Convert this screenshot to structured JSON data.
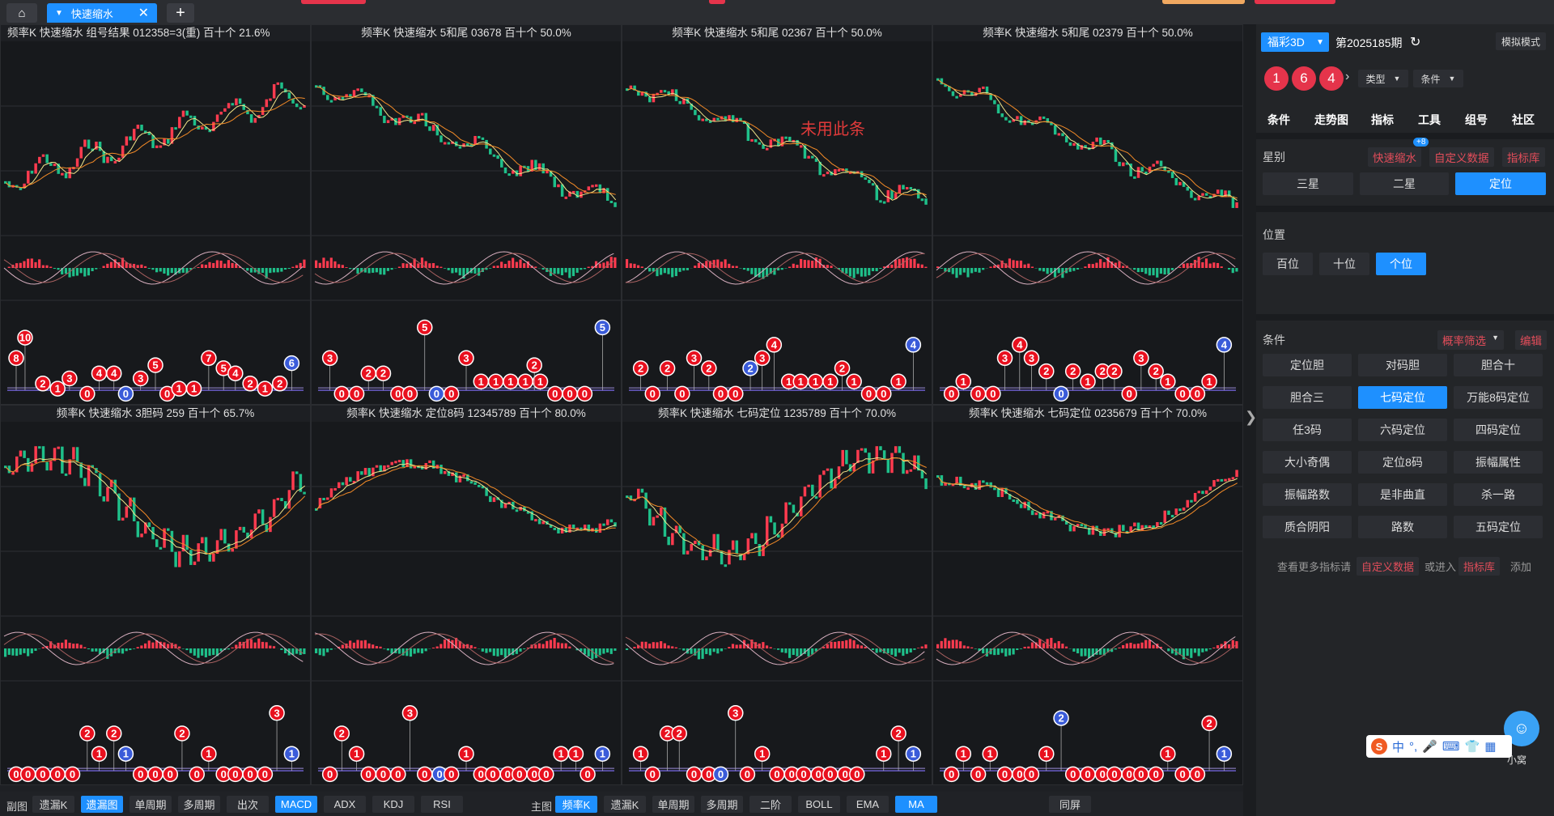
{
  "app": {
    "tabs": [
      {
        "label": "快速缩水"
      }
    ],
    "add_tab": "+",
    "colors": {
      "up": "#ff3b4f",
      "down": "#1fc08a",
      "accent": "#1e90ff",
      "ball_red": "#e8101e",
      "ball_blue": "#3a5bd9",
      "ma5": "#f2e58a",
      "ma10": "#f28a27"
    }
  },
  "panels": [
    {
      "title": "频率K  快速缩水  组号结果 012358=3(重)  百十个  21.6%",
      "align": "left",
      "trend": "up",
      "balls": [
        [
          "8",
          0.03,
          0.55
        ],
        [
          "10",
          0.06,
          0.35
        ],
        [
          "2",
          0.12,
          0.8
        ],
        [
          "1",
          0.17,
          0.85
        ],
        [
          "3",
          0.21,
          0.75
        ],
        [
          "0",
          0.27,
          0.9
        ],
        [
          "4",
          0.31,
          0.7
        ],
        [
          "4",
          0.36,
          0.7
        ],
        [
          "0",
          0.4,
          0.9,
          "b"
        ],
        [
          "3",
          0.45,
          0.75
        ],
        [
          "5",
          0.5,
          0.62
        ],
        [
          "0",
          0.54,
          0.9
        ],
        [
          "1",
          0.58,
          0.85
        ],
        [
          "1",
          0.63,
          0.85
        ],
        [
          "7",
          0.68,
          0.55
        ],
        [
          "5",
          0.73,
          0.65
        ],
        [
          "4",
          0.77,
          0.7
        ],
        [
          "2",
          0.82,
          0.8
        ],
        [
          "1",
          0.87,
          0.85
        ],
        [
          "2",
          0.92,
          0.8
        ],
        [
          "6",
          0.96,
          0.6,
          "b"
        ]
      ]
    },
    {
      "title": "频率K  快速缩水  5和尾 03678  百十个  50.0%",
      "align": "center",
      "trend": "down",
      "balls": [
        [
          "3",
          0.04,
          0.55
        ],
        [
          "0",
          0.08,
          0.9
        ],
        [
          "0",
          0.13,
          0.9
        ],
        [
          "2",
          0.17,
          0.7
        ],
        [
          "2",
          0.22,
          0.7
        ],
        [
          "5",
          0.36,
          0.25
        ],
        [
          "0",
          0.27,
          0.9
        ],
        [
          "0",
          0.31,
          0.9
        ],
        [
          "0",
          0.4,
          0.9,
          "b"
        ],
        [
          "0",
          0.45,
          0.9
        ],
        [
          "3",
          0.5,
          0.55
        ],
        [
          "1",
          0.55,
          0.78
        ],
        [
          "1",
          0.6,
          0.78
        ],
        [
          "1",
          0.65,
          0.78
        ],
        [
          "1",
          0.7,
          0.78
        ],
        [
          "1",
          0.75,
          0.78
        ],
        [
          "2",
          0.73,
          0.62
        ],
        [
          "0",
          0.8,
          0.9
        ],
        [
          "0",
          0.85,
          0.9
        ],
        [
          "0",
          0.9,
          0.9
        ],
        [
          "5",
          0.96,
          0.25,
          "b"
        ]
      ]
    },
    {
      "title": "频率K  快速缩水  5和尾 02367  百十个  50.0%",
      "align": "center",
      "trend": "down",
      "note": "未用此条",
      "balls": [
        [
          "2",
          0.04,
          0.65
        ],
        [
          "0",
          0.08,
          0.9
        ],
        [
          "2",
          0.13,
          0.65
        ],
        [
          "0",
          0.18,
          0.9
        ],
        [
          "3",
          0.22,
          0.55
        ],
        [
          "2",
          0.27,
          0.65
        ],
        [
          "0",
          0.31,
          0.9
        ],
        [
          "0",
          0.36,
          0.9
        ],
        [
          "2",
          0.41,
          0.65,
          "b"
        ],
        [
          "3",
          0.45,
          0.55
        ],
        [
          "4",
          0.49,
          0.42
        ],
        [
          "1",
          0.54,
          0.78
        ],
        [
          "1",
          0.58,
          0.78
        ],
        [
          "1",
          0.63,
          0.78
        ],
        [
          "1",
          0.68,
          0.78
        ],
        [
          "2",
          0.72,
          0.65
        ],
        [
          "1",
          0.76,
          0.78
        ],
        [
          "0",
          0.81,
          0.9
        ],
        [
          "0",
          0.86,
          0.9
        ],
        [
          "1",
          0.91,
          0.78
        ],
        [
          "4",
          0.96,
          0.42,
          "b"
        ]
      ]
    },
    {
      "title": "频率K  快速缩水  5和尾 02379  百十个  50.0%",
      "align": "center",
      "trend": "down",
      "balls": [
        [
          "0",
          0.04,
          0.9
        ],
        [
          "1",
          0.08,
          0.78
        ],
        [
          "0",
          0.13,
          0.9
        ],
        [
          "0",
          0.18,
          0.9
        ],
        [
          "3",
          0.22,
          0.55
        ],
        [
          "4",
          0.27,
          0.42
        ],
        [
          "3",
          0.31,
          0.55
        ],
        [
          "2",
          0.36,
          0.68
        ],
        [
          "0",
          0.41,
          0.9,
          "b"
        ],
        [
          "2",
          0.45,
          0.68
        ],
        [
          "1",
          0.5,
          0.78
        ],
        [
          "2",
          0.55,
          0.68
        ],
        [
          "2",
          0.59,
          0.68
        ],
        [
          "0",
          0.64,
          0.9
        ],
        [
          "3",
          0.68,
          0.55
        ],
        [
          "2",
          0.73,
          0.68
        ],
        [
          "1",
          0.77,
          0.78
        ],
        [
          "0",
          0.82,
          0.9
        ],
        [
          "0",
          0.87,
          0.9
        ],
        [
          "1",
          0.91,
          0.78
        ],
        [
          "4",
          0.96,
          0.42,
          "b"
        ]
      ]
    },
    {
      "title": "频率K  快速缩水  3胆码 259  百十个  65.7%",
      "align": "center",
      "trend": "wave",
      "balls": [
        [
          "0",
          0.03,
          0.9
        ],
        [
          "0",
          0.07,
          0.9
        ],
        [
          "0",
          0.12,
          0.9
        ],
        [
          "0",
          0.17,
          0.9
        ],
        [
          "0",
          0.22,
          0.9
        ],
        [
          "2",
          0.27,
          0.5
        ],
        [
          "1",
          0.31,
          0.7
        ],
        [
          "2",
          0.36,
          0.5
        ],
        [
          "1",
          0.4,
          0.7,
          "b"
        ],
        [
          "0",
          0.45,
          0.9
        ],
        [
          "0",
          0.5,
          0.9
        ],
        [
          "0",
          0.55,
          0.9
        ],
        [
          "2",
          0.59,
          0.5
        ],
        [
          "0",
          0.64,
          0.9
        ],
        [
          "1",
          0.68,
          0.7
        ],
        [
          "0",
          0.73,
          0.9
        ],
        [
          "0",
          0.77,
          0.9
        ],
        [
          "0",
          0.82,
          0.9
        ],
        [
          "0",
          0.87,
          0.9
        ],
        [
          "3",
          0.91,
          0.3
        ],
        [
          "1",
          0.96,
          0.7,
          "b"
        ]
      ]
    },
    {
      "title": "频率K  快速缩水  定位8码 12345789  百十个  80.0%",
      "align": "center",
      "trend": "wave2",
      "balls": [
        [
          "0",
          0.04,
          0.9
        ],
        [
          "2",
          0.08,
          0.5
        ],
        [
          "1",
          0.13,
          0.7
        ],
        [
          "0",
          0.17,
          0.9
        ],
        [
          "0",
          0.22,
          0.9
        ],
        [
          "0",
          0.27,
          0.9
        ],
        [
          "3",
          0.31,
          0.3
        ],
        [
          "0",
          0.36,
          0.9
        ],
        [
          "0",
          0.41,
          0.9,
          "b"
        ],
        [
          "0",
          0.45,
          0.9
        ],
        [
          "1",
          0.5,
          0.7
        ],
        [
          "0",
          0.55,
          0.9
        ],
        [
          "0",
          0.59,
          0.9
        ],
        [
          "0",
          0.64,
          0.9
        ],
        [
          "0",
          0.68,
          0.9
        ],
        [
          "0",
          0.73,
          0.9
        ],
        [
          "0",
          0.77,
          0.9
        ],
        [
          "1",
          0.82,
          0.7
        ],
        [
          "1",
          0.87,
          0.7
        ],
        [
          "0",
          0.91,
          0.9
        ],
        [
          "1",
          0.96,
          0.7,
          "b"
        ]
      ]
    },
    {
      "title": "频率K  快速缩水  七码定位 1235789  百十个  70.0%",
      "align": "center",
      "trend": "wave",
      "balls": [
        [
          "1",
          0.04,
          0.7
        ],
        [
          "0",
          0.08,
          0.9
        ],
        [
          "2",
          0.13,
          0.5
        ],
        [
          "2",
          0.17,
          0.5
        ],
        [
          "0",
          0.22,
          0.9
        ],
        [
          "0",
          0.27,
          0.9
        ],
        [
          "3",
          0.36,
          0.3
        ],
        [
          "0",
          0.31,
          0.9,
          "b"
        ],
        [
          "0",
          0.4,
          0.9
        ],
        [
          "1",
          0.45,
          0.7
        ],
        [
          "0",
          0.5,
          0.9
        ],
        [
          "0",
          0.55,
          0.9
        ],
        [
          "0",
          0.59,
          0.9
        ],
        [
          "0",
          0.64,
          0.9
        ],
        [
          "0",
          0.68,
          0.9
        ],
        [
          "0",
          0.73,
          0.9
        ],
        [
          "0",
          0.77,
          0.9
        ],
        [
          "1",
          0.86,
          0.7
        ],
        [
          "2",
          0.91,
          0.5
        ],
        [
          "1",
          0.96,
          0.7,
          "b"
        ]
      ]
    },
    {
      "title": "频率K  快速缩水  七码定位 0235679  百十个  70.0%",
      "align": "center",
      "trend": "wave2",
      "balls": [
        [
          "0",
          0.04,
          0.9
        ],
        [
          "1",
          0.08,
          0.7
        ],
        [
          "0",
          0.13,
          0.9
        ],
        [
          "1",
          0.17,
          0.7
        ],
        [
          "0",
          0.22,
          0.9
        ],
        [
          "0",
          0.27,
          0.9
        ],
        [
          "0",
          0.31,
          0.9
        ],
        [
          "1",
          0.36,
          0.7
        ],
        [
          "2",
          0.41,
          0.35,
          "b"
        ],
        [
          "0",
          0.45,
          0.9
        ],
        [
          "0",
          0.5,
          0.9
        ],
        [
          "0",
          0.55,
          0.9
        ],
        [
          "0",
          0.59,
          0.9
        ],
        [
          "0",
          0.64,
          0.9
        ],
        [
          "0",
          0.68,
          0.9
        ],
        [
          "0",
          0.73,
          0.9
        ],
        [
          "1",
          0.77,
          0.7
        ],
        [
          "0",
          0.82,
          0.9
        ],
        [
          "0",
          0.87,
          0.9
        ],
        [
          "2",
          0.91,
          0.4
        ],
        [
          "1",
          0.96,
          0.7,
          "b"
        ]
      ]
    }
  ],
  "sidebar": {
    "lottery": "福彩3D",
    "period": "第2025185期",
    "mode": "模拟模式",
    "balls": [
      "1",
      "6",
      "4"
    ],
    "type_select": "类型",
    "cond_select": "条件",
    "nav": [
      "条件",
      "走势图",
      "指标",
      "工具",
      "组号",
      "社区"
    ],
    "star_label": "星别",
    "quick_link": "快速缩水",
    "quick_badge": "+8",
    "custom_link": "自定义数据",
    "lib_link": "指标库",
    "star_options": [
      "三星",
      "二星",
      "定位"
    ],
    "pos_label": "位置",
    "pos_options": [
      "百位",
      "十位",
      "个位"
    ],
    "cond_label": "条件",
    "filter_select": "概率筛选",
    "edit": "编辑",
    "conditions": [
      "定位胆",
      "对码胆",
      "胆合十",
      "胆合三",
      "七码定位",
      "万能8码定位",
      "任3码",
      "六码定位",
      "四码定位",
      "大小奇偶",
      "定位8码",
      "振幅属性",
      "振幅路数",
      "是非曲直",
      "杀一路",
      "质合阴阳",
      "路数",
      "五码定位"
    ],
    "more_prefix": "查看更多指标请",
    "more_custom": "自定义数据",
    "more_mid": "或进入",
    "more_lib": "指标库",
    "more_suffix": "添加"
  },
  "bottombar": {
    "sub_label": "副图",
    "sub": [
      "遗漏K",
      "遗漏图",
      "单周期",
      "多周期",
      "出次",
      "MACD",
      "ADX",
      "KDJ",
      "RSI"
    ],
    "main_label": "主图",
    "main": [
      "频率K",
      "遗漏K",
      "单周期",
      "多周期",
      "二阶",
      "BOLL",
      "EMA",
      "MA"
    ],
    "same": "同屏"
  },
  "ime": {
    "chars": [
      "中",
      "°,",
      "🎤",
      "⌨",
      "👕",
      "▦"
    ]
  },
  "bot": {
    "text": "小窝"
  }
}
